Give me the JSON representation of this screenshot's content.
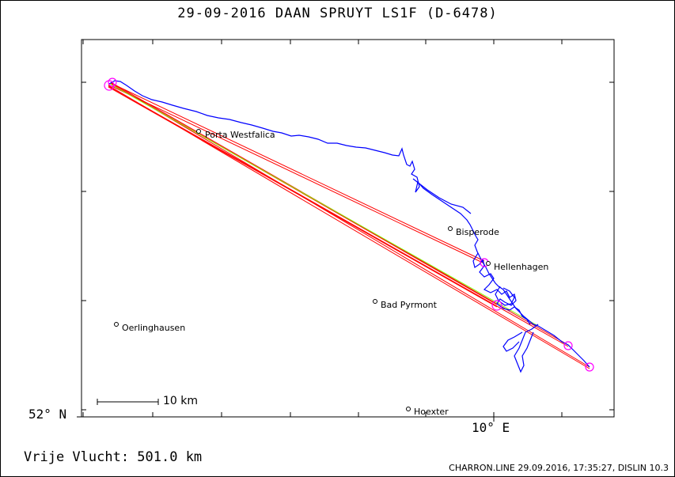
{
  "header": {
    "title": "29-09-2016    DAAN SPRUYT    LS1F (D-6478)"
  },
  "axes": {
    "lat_label": "52° N",
    "lon_label": "10° E"
  },
  "scale": {
    "label": "10 km"
  },
  "places": [
    {
      "name": "Porta Westfalica"
    },
    {
      "name": "Bisperode"
    },
    {
      "name": "Hellenhagen"
    },
    {
      "name": "Bad Pyrmont"
    },
    {
      "name": "Oerlinghausen"
    },
    {
      "name": "Hoexter"
    }
  ],
  "footer": {
    "flight_label": "Vrije Vlucht:  501.0 km",
    "software_info": "CHARRON.LINE 29.09.2016, 17:35:27, DISLIN 10.3"
  },
  "colors": {
    "track": "#0000ff",
    "task_lines": "#ff0000",
    "optimized_line": "#80ff00",
    "turnpoint_circles": "#ff00ff",
    "frame": "#000000"
  }
}
